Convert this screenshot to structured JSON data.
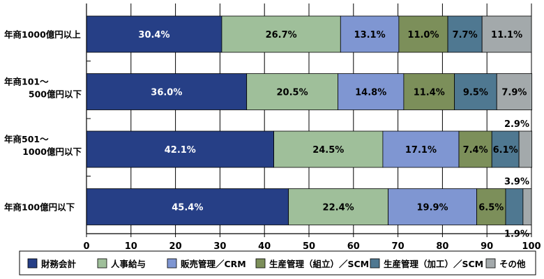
{
  "chart_data": {
    "type": "bar",
    "orientation": "horizontal",
    "stacked": true,
    "categories": [
      [
        "年商1000億円以上"
      ],
      [
        "年商101～",
        "500億円以下"
      ],
      [
        "年商501～",
        "1000億円以下"
      ],
      [
        "年商100億円以下"
      ]
    ],
    "series": [
      {
        "name": "財務会計",
        "color": "#263f86",
        "values": [
          30.4,
          36.0,
          42.1,
          45.4
        ],
        "labels": [
          "30.4%",
          "36.0%",
          "42.1%",
          "45.4%"
        ]
      },
      {
        "name": "人事給与",
        "color": "#9fbf9a",
        "values": [
          26.7,
          20.5,
          24.5,
          22.4
        ],
        "labels": [
          "26.7%",
          "20.5%",
          "24.5%",
          "22.4%"
        ]
      },
      {
        "name": "販売管理／CRM",
        "color": "#7f96d2",
        "values": [
          13.1,
          14.8,
          17.1,
          19.9
        ],
        "labels": [
          "13.1%",
          "14.8%",
          "17.1%",
          "19.9%"
        ]
      },
      {
        "name": "生産管理（組立）／SCM",
        "color": "#7c8f5a",
        "values": [
          11.0,
          11.4,
          7.4,
          6.5
        ],
        "labels": [
          "11.0%",
          "11.4%",
          "7.4%",
          "6.5%"
        ]
      },
      {
        "name": "生産管理（加工）／SCM",
        "color": "#4f7891",
        "values": [
          7.7,
          9.5,
          6.1,
          3.9
        ],
        "labels": [
          "7.7%",
          "9.5%",
          "6.1%",
          "3.9%"
        ]
      },
      {
        "name": "その他",
        "color": "#a3a9ab",
        "values": [
          11.1,
          7.9,
          2.9,
          1.9
        ],
        "labels": [
          "11.1%",
          "7.9%",
          "2.9%",
          "1.9%"
        ]
      }
    ],
    "xlim": [
      0,
      100
    ],
    "xticks": [
      "0",
      "10",
      "20",
      "30",
      "40",
      "50",
      "60",
      "70",
      "80",
      "90",
      "100"
    ],
    "grid": true,
    "legend_position": "bottom",
    "title": "",
    "xlabel": "",
    "ylabel": ""
  }
}
